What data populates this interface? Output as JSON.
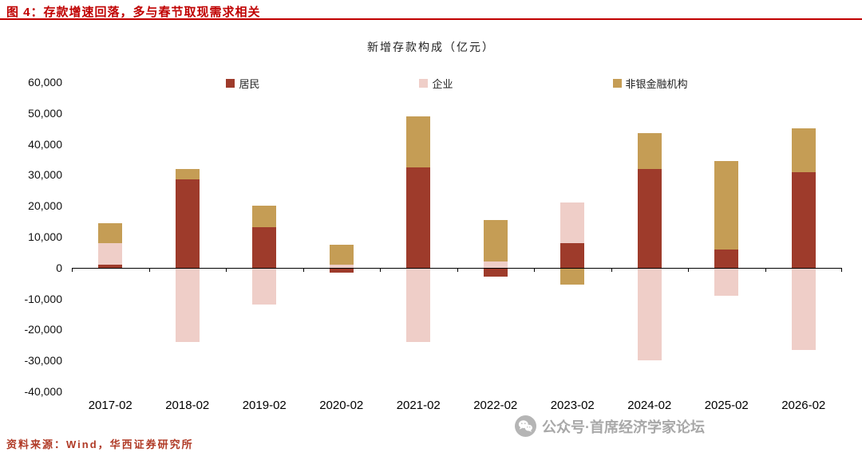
{
  "colors": {
    "title_red": "#c00000",
    "source_red": "#b03a26",
    "watermark_gray": "#a8a8a8",
    "axis_black": "#000000"
  },
  "header": {
    "figure_title": "图 4：存款增速回落，多与春节取现需求相关"
  },
  "chart_data": {
    "type": "bar",
    "stacked": true,
    "title": "新增存款构成（亿元）",
    "categories": [
      "2017-02",
      "2018-02",
      "2019-02",
      "2020-02",
      "2021-02",
      "2022-02",
      "2023-02",
      "2024-02",
      "2025-02",
      "2026-02"
    ],
    "series": [
      {
        "name": "居民",
        "color": "#9e3b2b",
        "values": [
          1000,
          28500,
          13000,
          -1500,
          32500,
          -3000,
          8000,
          32000,
          6000,
          31000
        ]
      },
      {
        "name": "企业",
        "color": "#efcec8",
        "values": [
          7000,
          -24000,
          -12000,
          1000,
          -24000,
          2000,
          13000,
          -30000,
          -9000,
          -26500
        ]
      },
      {
        "name": "非银金融机构",
        "color": "#c59d55",
        "values": [
          6500,
          3500,
          7000,
          6500,
          16500,
          13500,
          -5500,
          11500,
          28500,
          14000
        ]
      }
    ],
    "xlabel": "",
    "ylabel": "",
    "ylim": [
      -40000,
      60000
    ],
    "ytick_step": 10000,
    "grid": false,
    "legend_position": "top-center"
  },
  "footer": {
    "source": "资料来源：Wind，华西证券研究所"
  },
  "watermark": {
    "icon": "wechat-icon",
    "text": "公众号·首席经济学家论坛"
  }
}
